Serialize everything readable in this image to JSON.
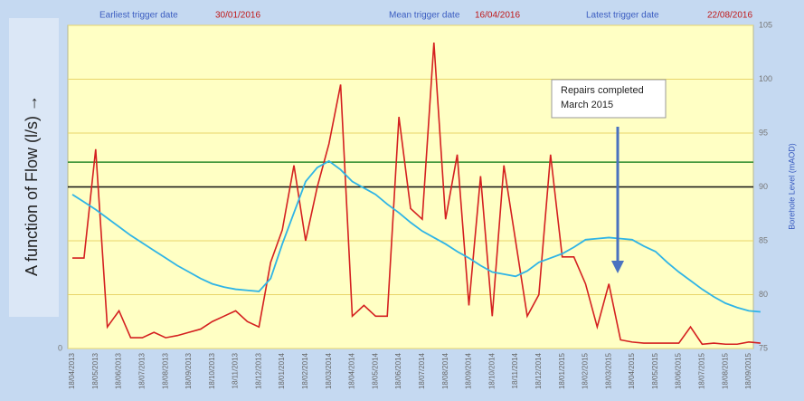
{
  "chart_data": {
    "type": "line",
    "y_label": "A function of Flow (l/s) →",
    "y2_label": "Borehole Level (mAOD)",
    "trigger_dates": [
      {
        "label": "Earliest trigger date",
        "date": "30/01/2016"
      },
      {
        "label": "Mean trigger date",
        "date": "16/04/2016"
      },
      {
        "label": "Latest trigger date",
        "date": "22/08/2016"
      }
    ],
    "annotation": [
      "Repairs completed",
      "March 2015"
    ],
    "categories": [
      "18/04/2013",
      null,
      "18/05/2013",
      null,
      "18/06/2013",
      null,
      "18/07/2013",
      null,
      "18/08/2013",
      null,
      "18/09/2013",
      null,
      "18/10/2013",
      null,
      "18/11/2013",
      null,
      "18/12/2013",
      null,
      "18/01/2014",
      null,
      "18/02/2014",
      null,
      "18/03/2014",
      null,
      "18/04/2014",
      null,
      "18/05/2014",
      null,
      "18/06/2014",
      null,
      "18/07/2014",
      null,
      "18/08/2014",
      null,
      "18/09/2014",
      null,
      "18/10/2014",
      null,
      "18/11/2014",
      null,
      "18/12/2014",
      null,
      "18/01/2015",
      null,
      "18/02/2015",
      null,
      "18/03/2015",
      null,
      "18/04/2015",
      null,
      "18/05/2015",
      null,
      "18/06/2015",
      null,
      "18/07/2015",
      null,
      "18/08/2015",
      null,
      "18/09/2015",
      null
    ],
    "series": [
      {
        "name": "Flow",
        "color": "#d42020",
        "axis": "y",
        "values": [
          8.4,
          8.4,
          18.5,
          2,
          3.5,
          1,
          1,
          1.5,
          1,
          1.2,
          1.5,
          1.8,
          2.5,
          3,
          3.5,
          2.5,
          2,
          8,
          11,
          17,
          10,
          15,
          19,
          24.5,
          3,
          4,
          3,
          3,
          21.5,
          13,
          12,
          28.4,
          12,
          18,
          4,
          16,
          3,
          17,
          10,
          3,
          5,
          18,
          8.5,
          8.5,
          6,
          2,
          6,
          0.8,
          0.6,
          0.5,
          0.5,
          0.5,
          0.5,
          2,
          0.4,
          0.5,
          0.4,
          0.4,
          0.6,
          0.5
        ]
      },
      {
        "name": "Borehole Level",
        "color": "#2fb4e6",
        "axis": "y2",
        "values": [
          89.3,
          88.6,
          87.9,
          87.1,
          86.3,
          85.5,
          84.8,
          84.1,
          83.4,
          82.7,
          82.1,
          81.5,
          81.0,
          80.7,
          80.5,
          80.4,
          80.3,
          81.5,
          84.7,
          87.6,
          90.5,
          91.8,
          92.4,
          91.6,
          90.5,
          89.9,
          89.3,
          88.4,
          87.6,
          86.7,
          85.9,
          85.3,
          84.7,
          84.0,
          83.4,
          82.7,
          82.1,
          81.9,
          81.7,
          82.2,
          83.0,
          83.4,
          83.8,
          84.4,
          85.1,
          85.2,
          85.3,
          85.2,
          85.1,
          84.5,
          84.0,
          83.0,
          82.1,
          81.3,
          80.5,
          79.8,
          79.2,
          78.8,
          78.5,
          78.4
        ]
      }
    ],
    "reference_lines": [
      {
        "value": 92.3,
        "color": "#2a8a2a",
        "axis": "y2"
      },
      {
        "value": 90,
        "color": "#111111",
        "axis": "y2"
      }
    ],
    "ylim": [
      0,
      30
    ],
    "yticks": [
      0
    ],
    "y2lim": [
      75,
      105
    ],
    "y2ticks": [
      75,
      80,
      85,
      90,
      95,
      100,
      105
    ],
    "grid": true
  }
}
